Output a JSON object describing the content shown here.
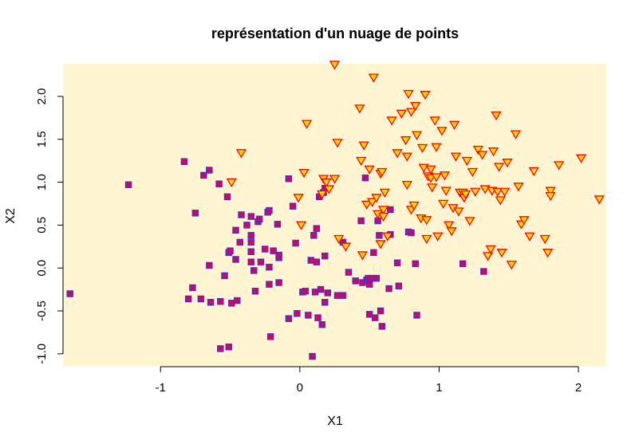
{
  "chart_data": {
    "type": "scatter",
    "title": "représentation d'un nuage de points",
    "xlabel": "X1",
    "ylabel": "X2",
    "xlim": [
      -1.7,
      2.2
    ],
    "ylim": [
      -1.15,
      2.38
    ],
    "xticks": [
      -1,
      0,
      1,
      2
    ],
    "xtick_labels": [
      "-1",
      "0",
      "1",
      "2"
    ],
    "yticks": [
      -1.0,
      -0.5,
      0.0,
      0.5,
      1.0,
      1.5,
      2.0
    ],
    "ytick_labels": [
      "-1.0",
      "-0.5",
      "0.0",
      "0.5",
      "1.0",
      "1.5",
      "2.0"
    ],
    "grid": false,
    "plot_background": "#FFF5D0",
    "series": [
      {
        "marker": "square",
        "fill_color": "#E0004E",
        "edge_color": "#4B2FD6",
        "points": [
          [
            -1.65,
            -0.3
          ],
          [
            -1.23,
            0.97
          ],
          [
            -0.83,
            1.24
          ],
          [
            -0.8,
            -0.36
          ],
          [
            -0.77,
            -0.23
          ],
          [
            -0.75,
            0.64
          ],
          [
            -0.71,
            -0.36
          ],
          [
            -0.69,
            1.08
          ],
          [
            -0.65,
            1.14
          ],
          [
            -0.65,
            0.03
          ],
          [
            -0.64,
            -0.4
          ],
          [
            -0.58,
            0.98
          ],
          [
            -0.57,
            -0.39
          ],
          [
            -0.57,
            -0.94
          ],
          [
            -0.54,
            -0.09
          ],
          [
            -0.52,
            0.83
          ],
          [
            -0.51,
            0.18
          ],
          [
            -0.51,
            -0.92
          ],
          [
            -0.5,
            0.2
          ],
          [
            -0.49,
            -0.41
          ],
          [
            -0.46,
            0.1
          ],
          [
            -0.46,
            0.44
          ],
          [
            -0.45,
            -0.38
          ],
          [
            -0.43,
            0.3
          ],
          [
            -0.42,
            0.62
          ],
          [
            -0.38,
            0.5
          ],
          [
            -0.35,
            0.6
          ],
          [
            -0.35,
            0.38
          ],
          [
            -0.35,
            0.3
          ],
          [
            -0.35,
            0.19
          ],
          [
            -0.35,
            0.07
          ],
          [
            -0.33,
            -0.03
          ],
          [
            -0.32,
            -0.27
          ],
          [
            -0.3,
            0.54
          ],
          [
            -0.29,
            0.57
          ],
          [
            -0.28,
            0.07
          ],
          [
            -0.25,
            0.22
          ],
          [
            -0.23,
            0.65
          ],
          [
            -0.22,
            0.67
          ],
          [
            -0.22,
            -0.19
          ],
          [
            -0.22,
            0.01
          ],
          [
            -0.21,
            -0.8
          ],
          [
            -0.19,
            0.2
          ],
          [
            -0.16,
            0.51
          ],
          [
            -0.15,
            0.12
          ],
          [
            -0.15,
            0.15
          ],
          [
            -0.15,
            -0.17
          ],
          [
            -0.08,
            1.04
          ],
          [
            -0.08,
            -0.59
          ],
          [
            -0.05,
            0.72
          ],
          [
            -0.03,
            0.29
          ],
          [
            -0.02,
            -0.53
          ],
          [
            0.02,
            -0.28
          ],
          [
            0.04,
            -0.27
          ],
          [
            0.06,
            -0.55
          ],
          [
            0.08,
            0.09
          ],
          [
            0.09,
            -1.03
          ],
          [
            0.1,
            0.38
          ],
          [
            0.11,
            -0.28
          ],
          [
            0.12,
            0.07
          ],
          [
            0.12,
            0.46
          ],
          [
            0.13,
            -0.58
          ],
          [
            0.14,
            0.83
          ],
          [
            0.15,
            -0.25
          ],
          [
            0.16,
            -0.66
          ],
          [
            0.17,
            0.88
          ],
          [
            0.18,
            -0.4
          ],
          [
            0.18,
            0.14
          ],
          [
            0.18,
            0.93
          ],
          [
            0.2,
            -0.29
          ],
          [
            0.27,
            -0.32
          ],
          [
            0.31,
            -0.32
          ],
          [
            0.31,
            0.3
          ],
          [
            0.35,
            -0.05
          ],
          [
            0.4,
            -0.15
          ],
          [
            0.44,
            0.55
          ],
          [
            0.45,
            -0.17
          ],
          [
            0.47,
            1.05
          ],
          [
            0.48,
            -0.14
          ],
          [
            0.49,
            -0.12
          ],
          [
            0.5,
            -0.19
          ],
          [
            0.5,
            -0.54
          ],
          [
            0.52,
            -0.12
          ],
          [
            0.53,
            0.18
          ],
          [
            0.54,
            -0.58
          ],
          [
            0.55,
            -0.12
          ],
          [
            0.56,
            0.55
          ],
          [
            0.57,
            0.38
          ],
          [
            0.58,
            -0.5
          ],
          [
            0.59,
            -0.68
          ],
          [
            0.64,
            -0.24
          ],
          [
            0.65,
            0.39
          ],
          [
            0.65,
            0.68
          ],
          [
            0.7,
            0.06
          ],
          [
            0.71,
            -0.21
          ],
          [
            0.78,
            0.42
          ],
          [
            0.8,
            0.41
          ],
          [
            0.83,
            0.05
          ],
          [
            0.84,
            -0.55
          ],
          [
            1.17,
            0.05
          ],
          [
            1.32,
            -0.04
          ]
        ]
      },
      {
        "marker": "triangle-down",
        "fill_color": "#FFD700",
        "edge_color": "#FF0000",
        "points": [
          [
            -0.42,
            1.34
          ],
          [
            -0.49,
            1.0
          ],
          [
            -0.01,
            0.82
          ],
          [
            0.01,
            0.5
          ],
          [
            0.03,
            1.11
          ],
          [
            0.05,
            1.68
          ],
          [
            0.16,
            0.86
          ],
          [
            0.17,
            1.04
          ],
          [
            0.19,
            1.0
          ],
          [
            0.21,
            0.92
          ],
          [
            0.25,
            1.04
          ],
          [
            0.25,
            2.37
          ],
          [
            0.27,
            1.46
          ],
          [
            0.28,
            0.34
          ],
          [
            0.33,
            0.25
          ],
          [
            0.45,
            0.15
          ],
          [
            0.43,
            1.86
          ],
          [
            0.44,
            1.25
          ],
          [
            0.46,
            1.43
          ],
          [
            0.48,
            0.74
          ],
          [
            0.5,
            1.15
          ],
          [
            0.52,
            0.77
          ],
          [
            0.53,
            2.22
          ],
          [
            0.55,
            0.82
          ],
          [
            0.56,
            0.63
          ],
          [
            0.58,
            0.28
          ],
          [
            0.58,
            1.1
          ],
          [
            0.59,
            1.12
          ],
          [
            0.6,
            0.68
          ],
          [
            0.6,
            0.6
          ],
          [
            0.61,
            0.88
          ],
          [
            0.63,
            0.37
          ],
          [
            0.66,
            1.72
          ],
          [
            0.7,
            1.34
          ],
          [
            0.73,
            1.8
          ],
          [
            0.76,
            1.49
          ],
          [
            0.77,
            1.3
          ],
          [
            0.77,
            0.97
          ],
          [
            0.78,
            2.03
          ],
          [
            0.8,
            0.68
          ],
          [
            0.8,
            1.82
          ],
          [
            0.82,
            0.73
          ],
          [
            0.83,
            1.89
          ],
          [
            0.84,
            1.55
          ],
          [
            0.87,
            0.58
          ],
          [
            0.88,
            1.4
          ],
          [
            0.89,
            1.17
          ],
          [
            0.9,
            2.02
          ],
          [
            0.91,
            0.56
          ],
          [
            0.91,
            0.34
          ],
          [
            0.92,
            1.07
          ],
          [
            0.94,
            1.05
          ],
          [
            0.94,
            1.15
          ],
          [
            0.95,
            0.94
          ],
          [
            0.97,
            1.72
          ],
          [
            0.98,
            1.41
          ],
          [
            0.98,
            1.06
          ],
          [
            0.99,
            0.37
          ],
          [
            1.02,
            1.6
          ],
          [
            1.03,
            0.75
          ],
          [
            1.04,
            1.08
          ],
          [
            1.05,
            0.9
          ],
          [
            1.07,
            0.5
          ],
          [
            1.09,
            0.43
          ],
          [
            1.1,
            0.7
          ],
          [
            1.11,
            1.67
          ],
          [
            1.12,
            1.3
          ],
          [
            1.14,
            0.66
          ],
          [
            1.15,
            0.88
          ],
          [
            1.17,
            0.88
          ],
          [
            1.18,
            0.82
          ],
          [
            1.19,
            0.86
          ],
          [
            1.2,
            1.25
          ],
          [
            1.22,
            0.55
          ],
          [
            1.24,
            1.12
          ],
          [
            1.26,
            0.89
          ],
          [
            1.28,
            1.38
          ],
          [
            1.31,
            1.32
          ],
          [
            1.33,
            0.92
          ],
          [
            1.35,
            0.14
          ],
          [
            1.37,
            0.22
          ],
          [
            1.38,
            0.9
          ],
          [
            1.39,
            1.36
          ],
          [
            1.41,
            1.78
          ],
          [
            1.42,
            0.89
          ],
          [
            1.43,
            1.18
          ],
          [
            1.44,
            0.79
          ],
          [
            1.45,
            0.18
          ],
          [
            1.47,
            0.89
          ],
          [
            1.49,
            1.23
          ],
          [
            1.52,
            0.04
          ],
          [
            1.55,
            1.56
          ],
          [
            1.57,
            0.95
          ],
          [
            1.59,
            0.51
          ],
          [
            1.61,
            0.56
          ],
          [
            1.65,
            0.37
          ],
          [
            1.68,
            1.13
          ],
          [
            1.76,
            0.34
          ],
          [
            1.78,
            0.18
          ],
          [
            1.8,
            0.9
          ],
          [
            1.8,
            0.84
          ],
          [
            1.86,
            1.2
          ],
          [
            2.02,
            1.28
          ],
          [
            2.15,
            0.8
          ]
        ]
      }
    ]
  }
}
